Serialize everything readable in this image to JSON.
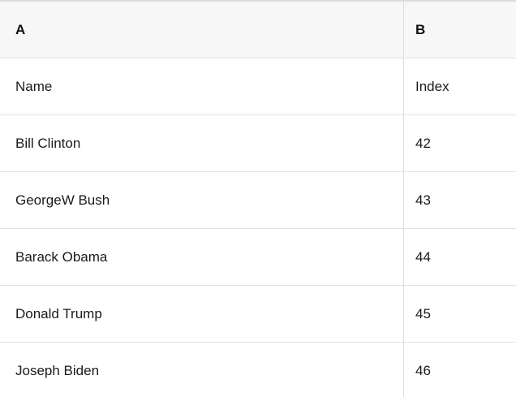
{
  "table": {
    "column_headers": [
      "A",
      "B"
    ],
    "rows": [
      [
        "Name",
        "Index"
      ],
      [
        "Bill Clinton",
        "42"
      ],
      [
        "GeorgeW Bush",
        "43"
      ],
      [
        "Barack Obama",
        "44"
      ],
      [
        "Donald Trump",
        "45"
      ],
      [
        "Joseph Biden",
        "46"
      ]
    ]
  },
  "colors": {
    "header_background": "#f7f7f7",
    "border": "#e2e2e2",
    "text": "#1a1a1a"
  }
}
